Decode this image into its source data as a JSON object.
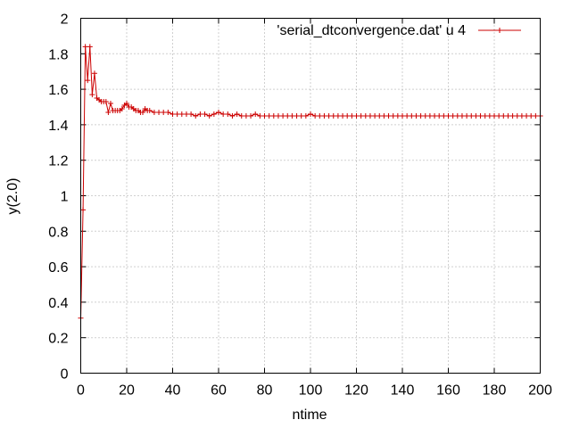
{
  "chart_data": {
    "type": "line",
    "xlabel": "ntime",
    "ylabel": "y(2.0)",
    "xlim": [
      0,
      200
    ],
    "ylim": [
      0,
      2
    ],
    "xticks": [
      0,
      20,
      40,
      60,
      80,
      100,
      120,
      140,
      160,
      180,
      200
    ],
    "yticks": [
      0,
      0.2,
      0.4,
      0.6,
      0.8,
      1,
      1.2,
      1.4,
      1.6,
      1.8,
      2
    ],
    "ytick_labels": [
      "0",
      "0.2",
      "0.4",
      "0.6",
      "0.8",
      "1",
      "1.2",
      "1.4",
      "1.6",
      "1.8",
      "2"
    ],
    "grid": true,
    "legend_position": "top-right",
    "series": [
      {
        "name": "'serial_dtconvergence.dat' u 4",
        "color": "#cc0000",
        "marker": "plus",
        "x": [
          0,
          1,
          2,
          3,
          4,
          5,
          6,
          7,
          8,
          9,
          10,
          11,
          12,
          13,
          14,
          15,
          16,
          17,
          18,
          19,
          20,
          21,
          22,
          23,
          24,
          25,
          26,
          27,
          28,
          29,
          30,
          32,
          34,
          36,
          38,
          40,
          42,
          44,
          46,
          48,
          50,
          52,
          54,
          56,
          58,
          60,
          62,
          64,
          66,
          68,
          70,
          72,
          74,
          76,
          78,
          80,
          82,
          84,
          86,
          88,
          90,
          92,
          94,
          96,
          98,
          100,
          102,
          104,
          106,
          108,
          110,
          112,
          114,
          116,
          118,
          120,
          122,
          124,
          126,
          128,
          130,
          132,
          134,
          136,
          138,
          140,
          142,
          144,
          146,
          148,
          150,
          152,
          154,
          156,
          158,
          160,
          162,
          164,
          166,
          168,
          170,
          172,
          174,
          176,
          178,
          180,
          182,
          184,
          186,
          188,
          190,
          192,
          194,
          196,
          198,
          200
        ],
        "y": [
          0.31,
          0.92,
          1.84,
          1.65,
          1.84,
          1.57,
          1.69,
          1.55,
          1.54,
          1.53,
          1.53,
          1.53,
          1.47,
          1.52,
          1.48,
          1.48,
          1.48,
          1.48,
          1.49,
          1.51,
          1.52,
          1.5,
          1.5,
          1.49,
          1.48,
          1.48,
          1.47,
          1.47,
          1.49,
          1.48,
          1.48,
          1.47,
          1.47,
          1.47,
          1.47,
          1.46,
          1.46,
          1.46,
          1.46,
          1.46,
          1.45,
          1.46,
          1.46,
          1.45,
          1.46,
          1.47,
          1.46,
          1.46,
          1.45,
          1.46,
          1.45,
          1.45,
          1.45,
          1.46,
          1.45,
          1.45,
          1.45,
          1.45,
          1.45,
          1.45,
          1.45,
          1.45,
          1.45,
          1.45,
          1.45,
          1.46,
          1.45,
          1.45,
          1.45,
          1.45,
          1.45,
          1.45,
          1.45,
          1.45,
          1.45,
          1.45,
          1.45,
          1.45,
          1.45,
          1.45,
          1.45,
          1.45,
          1.45,
          1.45,
          1.45,
          1.45,
          1.45,
          1.45,
          1.45,
          1.45,
          1.45,
          1.45,
          1.45,
          1.45,
          1.45,
          1.45,
          1.45,
          1.45,
          1.45,
          1.45,
          1.45,
          1.45,
          1.45,
          1.45,
          1.45,
          1.45,
          1.45,
          1.45,
          1.45,
          1.45,
          1.45,
          1.45,
          1.45,
          1.45,
          1.45,
          1.45
        ]
      }
    ]
  }
}
